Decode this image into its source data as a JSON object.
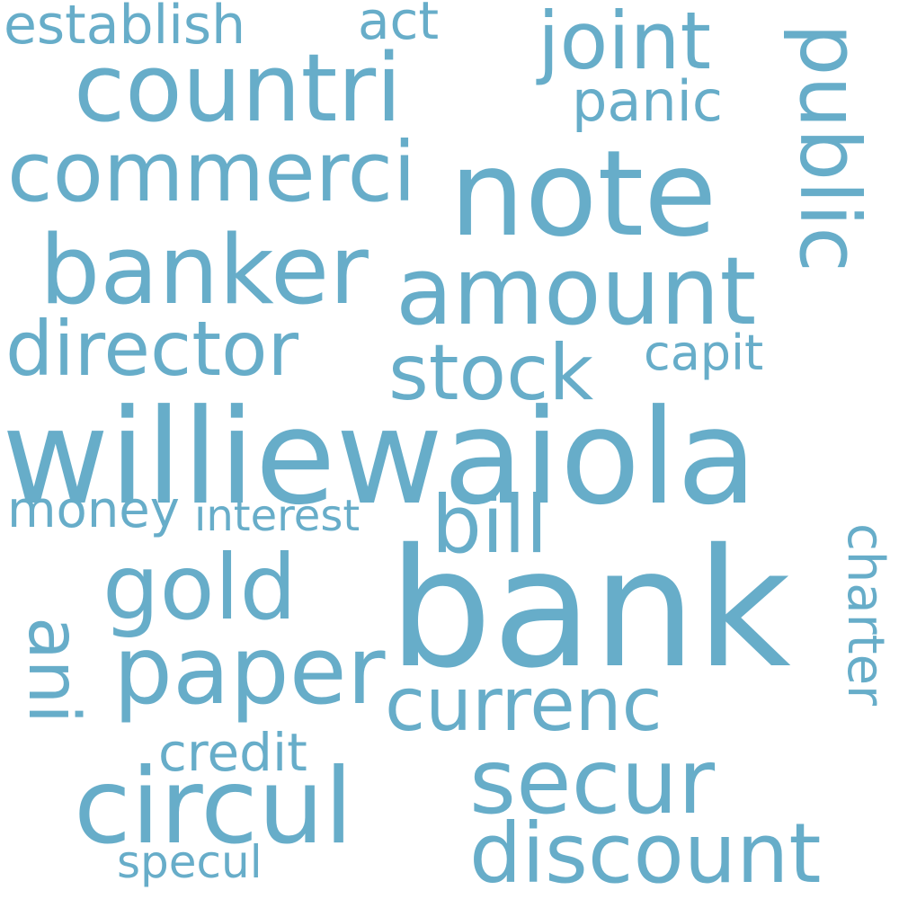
{
  "word_cloud": {
    "text_color": "#67adc9",
    "background": "#ffffff",
    "words": {
      "establish": "establish",
      "act": "act",
      "joint": "joint",
      "countri": "countri",
      "panic": "panic",
      "public": "public",
      "commerci": "commerci",
      "note": "note",
      "banker": "banker",
      "amount": "amount",
      "director": "director",
      "stock": "stock",
      "capit": "capit",
      "williewaiola": "williewaiola",
      "money": "money",
      "interest": "interest",
      "bill": "bill",
      "charter": "charter",
      "gold": "gold",
      "bank": "bank",
      "ani": "ani",
      "paper": "paper",
      "currenc": "currenc",
      "credit": "credit",
      "secur": "secur",
      "circul": "circul",
      "discount": "discount",
      "specul": "specul"
    }
  }
}
